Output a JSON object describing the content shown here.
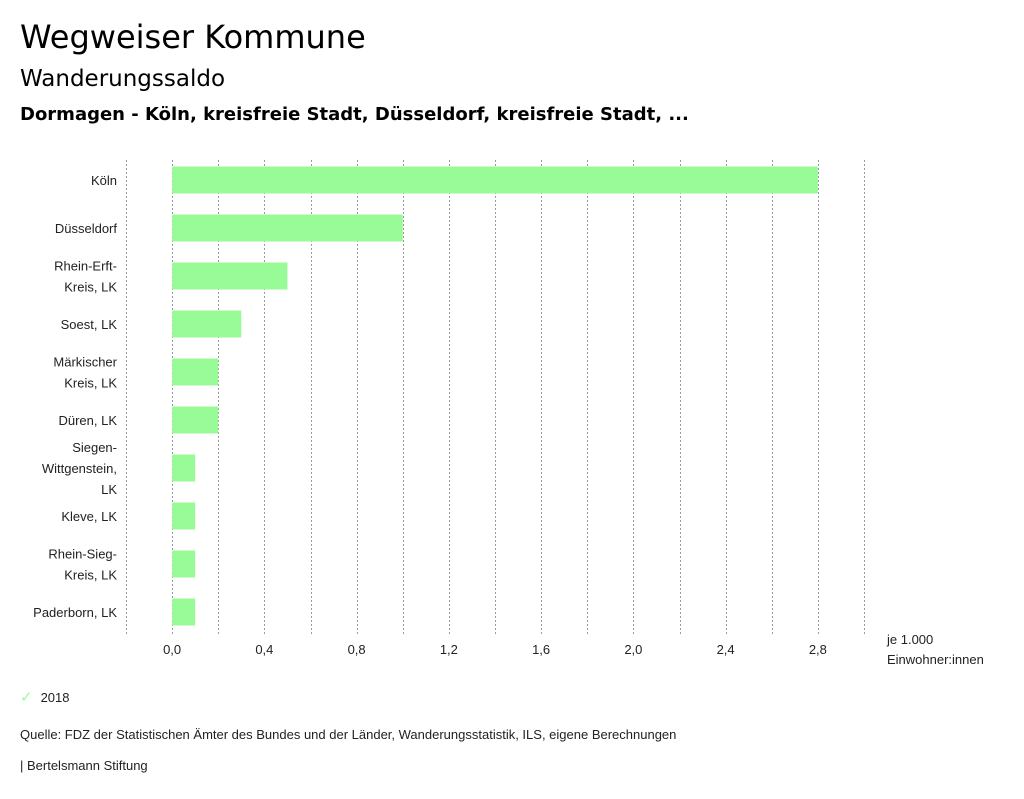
{
  "header": {
    "title": "Wegweiser Kommune",
    "subtitle": "Wanderungssaldo",
    "region": "Dormagen - Köln, kreisfreie Stadt, Düsseldorf, kreisfreie Stadt, ..."
  },
  "chart_data": {
    "type": "bar",
    "orientation": "horizontal",
    "categories": [
      [
        "Köln"
      ],
      [
        "Düsseldorf"
      ],
      [
        "Rhein-Erft-",
        "Kreis, LK"
      ],
      [
        "Soest, LK"
      ],
      [
        "Märkischer",
        "Kreis, LK"
      ],
      [
        "Düren, LK"
      ],
      [
        "Siegen-",
        "Wittgenstein,",
        "LK"
      ],
      [
        "Kleve, LK"
      ],
      [
        "Rhein-Sieg-",
        "Kreis, LK"
      ],
      [
        "Paderborn, LK"
      ]
    ],
    "series": [
      {
        "name": "2018",
        "values": [
          2.8,
          1.0,
          0.5,
          0.3,
          0.2,
          0.2,
          0.1,
          0.1,
          0.1,
          0.1
        ]
      }
    ],
    "xlim": [
      -0.2,
      3.0
    ],
    "xticks": [
      0.0,
      0.4,
      0.8,
      1.2,
      1.6,
      2.0,
      2.4,
      2.8
    ],
    "xtick_labels": [
      "0,0",
      "0,4",
      "0,8",
      "1,2",
      "1,6",
      "2,0",
      "2,4",
      "2,8"
    ],
    "gridlines_every": 0.2,
    "xlabel_line1": "je 1.000",
    "xlabel_line2": "Einwohner:innen",
    "bar_color": "#98fb98",
    "grid": true
  },
  "legend": {
    "items": [
      {
        "label": "2018",
        "color": "#98fb98",
        "icon": "check-icon",
        "glyph": "✓"
      }
    ]
  },
  "footer": {
    "source": "Quelle: FDZ der Statistischen Ämter des Bundes und der Länder, Wanderungsstatistik, ILS, eigene Berechnungen",
    "publisher": "| Bertelsmann Stiftung"
  }
}
